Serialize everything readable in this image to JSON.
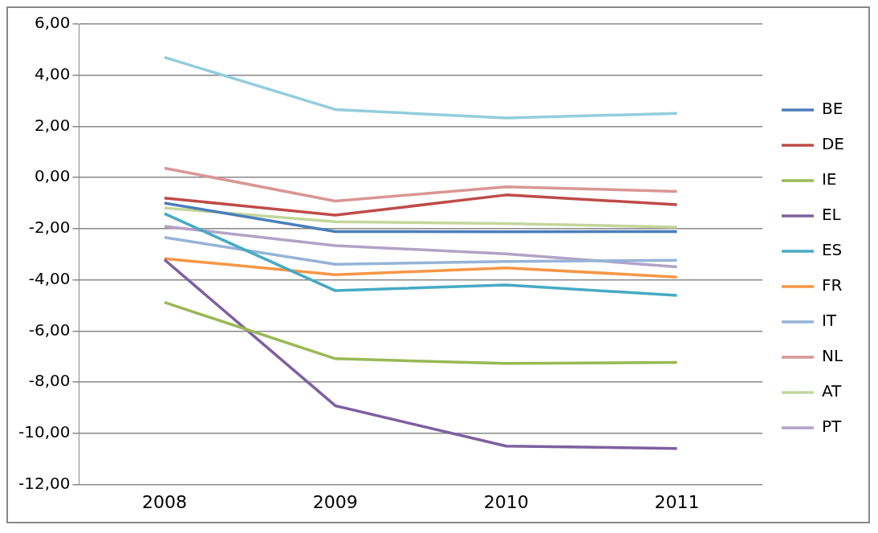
{
  "chart_data": {
    "type": "line",
    "categories": [
      "2008",
      "2009",
      "2010",
      "2011"
    ],
    "series": [
      {
        "name": "BE",
        "color": "#4a7ebb",
        "values": [
          -1.0,
          -2.11,
          -2.12,
          -2.11
        ]
      },
      {
        "name": "DE",
        "color": "#be4b48",
        "values": [
          -0.8,
          -1.47,
          -0.68,
          -1.06
        ]
      },
      {
        "name": "IE",
        "color": "#98b954",
        "values": [
          -4.88,
          -7.08,
          -7.27,
          -7.23
        ]
      },
      {
        "name": "EL",
        "color": "#7d60a0",
        "values": [
          -3.21,
          -8.92,
          -10.5,
          -10.59
        ]
      },
      {
        "name": "ES",
        "color": "#46aac5",
        "values": [
          -1.41,
          -4.42,
          -4.2,
          -4.61
        ]
      },
      {
        "name": "FR",
        "color": "#f79646",
        "values": [
          -3.17,
          -3.8,
          -3.53,
          -3.89
        ]
      },
      {
        "name": "IT",
        "color": "#95b3d7",
        "values": [
          -2.34,
          -3.39,
          -3.28,
          -3.23
        ]
      },
      {
        "name": "NL",
        "color": "#d99694",
        "values": [
          0.37,
          -0.92,
          -0.36,
          -0.54
        ]
      },
      {
        "name": "AT",
        "color": "#c3d69b",
        "values": [
          -1.19,
          -1.73,
          -1.8,
          -1.94
        ]
      },
      {
        "name": "PT",
        "color": "#b3a2c7",
        "values": [
          -1.91,
          -2.66,
          -2.98,
          -3.49
        ]
      },
      {
        "color": "#93cddd",
        "values": [
          4.7,
          2.66,
          2.33,
          2.51
        ]
      }
    ],
    "ylim": [
      -12,
      6
    ],
    "yticks": [
      {
        "value": -12,
        "label": "-12,00"
      },
      {
        "value": -10,
        "label": "-10,00"
      },
      {
        "value": -8,
        "label": "-8,00"
      },
      {
        "value": -6,
        "label": "-6,00"
      },
      {
        "value": -4,
        "label": "-4,00"
      },
      {
        "value": -2,
        "label": "-2,00"
      },
      {
        "value": 0,
        "label": "0,00"
      },
      {
        "value": 2,
        "label": "2,00"
      },
      {
        "value": 4,
        "label": "4,00"
      },
      {
        "value": 6,
        "label": "6,00"
      }
    ],
    "grid": "y",
    "legend": "right",
    "marker": "none",
    "line_style": "solid"
  }
}
